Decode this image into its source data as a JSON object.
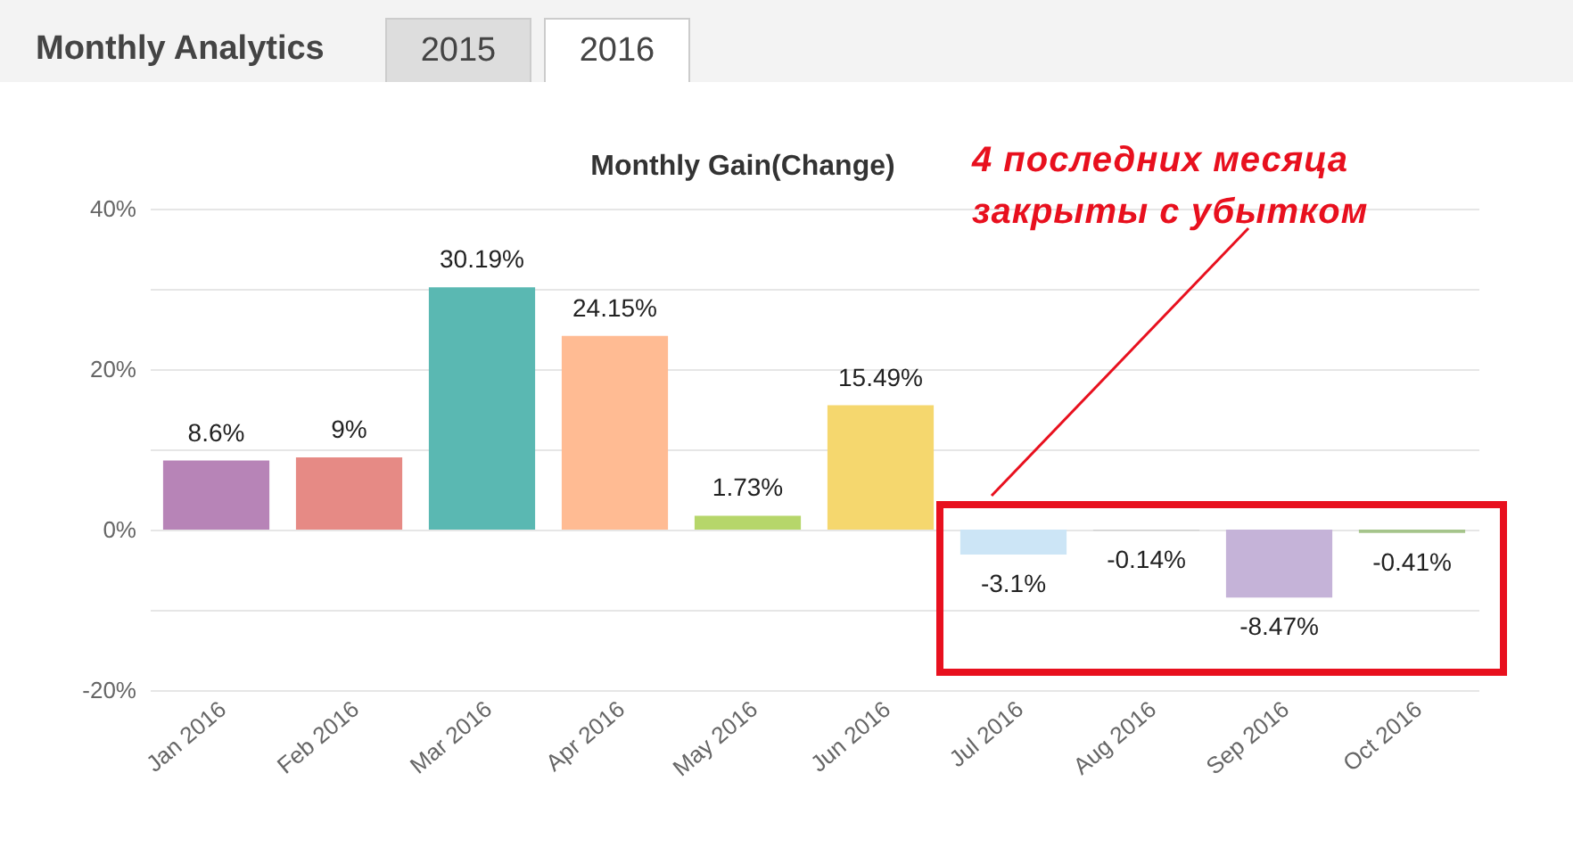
{
  "chart_data": {
    "type": "bar",
    "title": "Monthly Gain(Change)",
    "annotations": [
      "Monthly Analytics",
      "2015",
      "2016",
      "4 последних месяца закрыты с убытком"
    ],
    "categories": [
      "Jan 2016",
      "Feb 2016",
      "Mar 2016",
      "Apr 2016",
      "May 2016",
      "Jun 2016",
      "Jul 2016",
      "Aug 2016",
      "Sep 2016",
      "Oct 2016"
    ],
    "values": [
      8.6,
      9,
      30.19,
      24.15,
      1.73,
      15.49,
      -3.1,
      -0.14,
      -8.47,
      -0.41
    ],
    "value_labels": [
      "8.6%",
      "9%",
      "30.19%",
      "24.15%",
      "1.73%",
      "15.49%",
      "-3.1%",
      "-0.14%",
      "-8.47%",
      "-0.41%"
    ],
    "colors": [
      "#b784b7",
      "#e68a85",
      "#5ab8b2",
      "#ffbb93",
      "#b6d66a",
      "#f5d76e",
      "#cce5f6",
      "#d0d0d0",
      "#c5b3d8",
      "#a5c48b"
    ],
    "ylim": [
      -20,
      40
    ],
    "yticks": [
      {
        "value": -20,
        "label": "-20%"
      },
      {
        "value": -10,
        "label": null
      },
      {
        "value": 0,
        "label": "0%"
      },
      {
        "value": 10,
        "label": null
      },
      {
        "value": 20,
        "label": "20%"
      },
      {
        "value": 30,
        "label": null
      },
      {
        "value": 40,
        "label": "40%"
      }
    ],
    "grid": "y"
  }
}
